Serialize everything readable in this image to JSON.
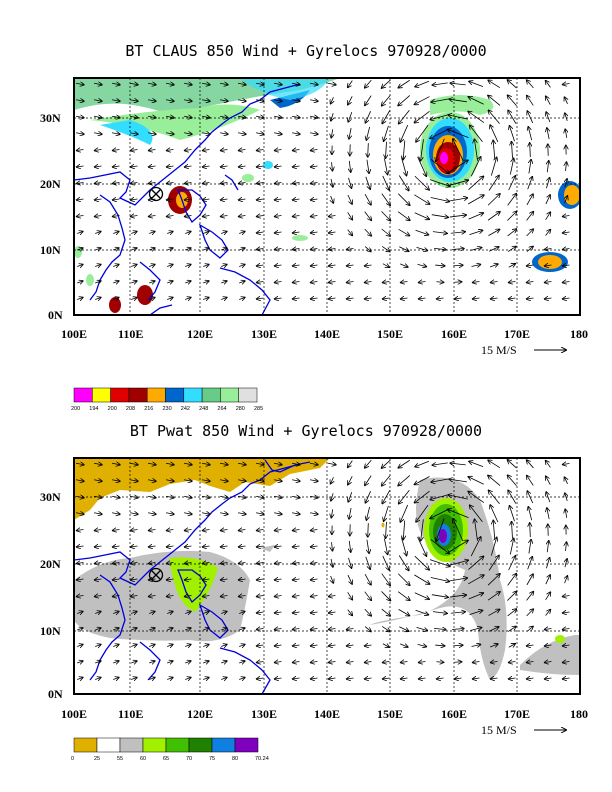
{
  "panel1": {
    "title": "BT CLAUS 850 Wind + Gyrelocs 970928/0000",
    "lat_labels": [
      "30N",
      "20N",
      "10N",
      "0N"
    ],
    "lon_labels": [
      "100E",
      "110E",
      "120E",
      "130E",
      "140E",
      "150E",
      "160E",
      "170E",
      "180"
    ],
    "ref_vector": "15 M/S",
    "legend_labels": [
      "200",
      "194",
      "200",
      "208",
      "216",
      "230",
      "242",
      "248",
      "264",
      "280",
      "285"
    ],
    "legend_colors": [
      "#ff00ff",
      "#ffff00",
      "#e00000",
      "#a00000",
      "#ffaa00",
      "#0066cc",
      "#33ddff",
      "#66cc88",
      "#99ee99",
      "#e0e0e0"
    ]
  },
  "panel2": {
    "title": "BT Pwat 850 Wind + Gyrelocs 970928/0000",
    "lat_labels": [
      "30N",
      "20N",
      "10N",
      "0N"
    ],
    "lon_labels": [
      "100E",
      "110E",
      "120E",
      "130E",
      "140E",
      "150E",
      "160E",
      "170E",
      "180"
    ],
    "ref_vector": "15 M/S",
    "legend_labels": [
      "0",
      "25",
      "55",
      "60",
      "65",
      "70",
      "75",
      "80",
      "70.24"
    ],
    "legend_colors": [
      "#e0b000",
      "#ffffff",
      "#c0c0c0",
      "#a0f000",
      "#40c000",
      "#208000",
      "#1080e0",
      "#8000c0"
    ]
  }
}
